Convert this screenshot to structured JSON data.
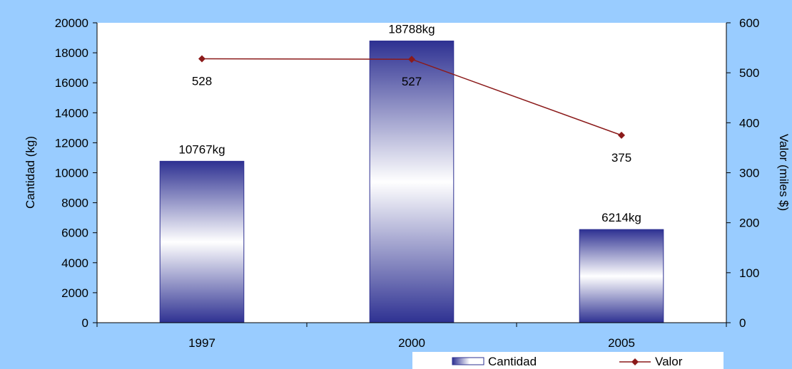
{
  "chart_data": {
    "type": "bar",
    "categories": [
      "1997",
      "2000",
      "2005"
    ],
    "ylabel": "Cantidad (kg)",
    "y2label": "Valor (miles $)",
    "ylim": [
      0,
      20000
    ],
    "y2lim": [
      0,
      600
    ],
    "yticks": [
      "0",
      "2000",
      "4000",
      "6000",
      "8000",
      "10000",
      "12000",
      "14000",
      "16000",
      "18000",
      "20000"
    ],
    "y2ticks": [
      "0",
      "100",
      "200",
      "300",
      "400",
      "500",
      "600"
    ],
    "series": [
      {
        "name": "Cantidad",
        "type": "bar",
        "axis": "left",
        "values": [
          10767,
          18788,
          6214
        ],
        "labels": [
          "10767kg",
          "18788kg",
          "6214kg"
        ]
      },
      {
        "name": "Valor",
        "type": "line",
        "axis": "right",
        "values": [
          528,
          527,
          375
        ],
        "labels": [
          "528",
          "527",
          "375"
        ]
      }
    ],
    "legend_position": "bottom-right",
    "grid": false,
    "colors": {
      "background": "#99ccff",
      "plot_area": "#ffffff",
      "bar_edge": "#2e3192",
      "bar_light": "#ffffff",
      "line": "#8b1a1a"
    }
  }
}
